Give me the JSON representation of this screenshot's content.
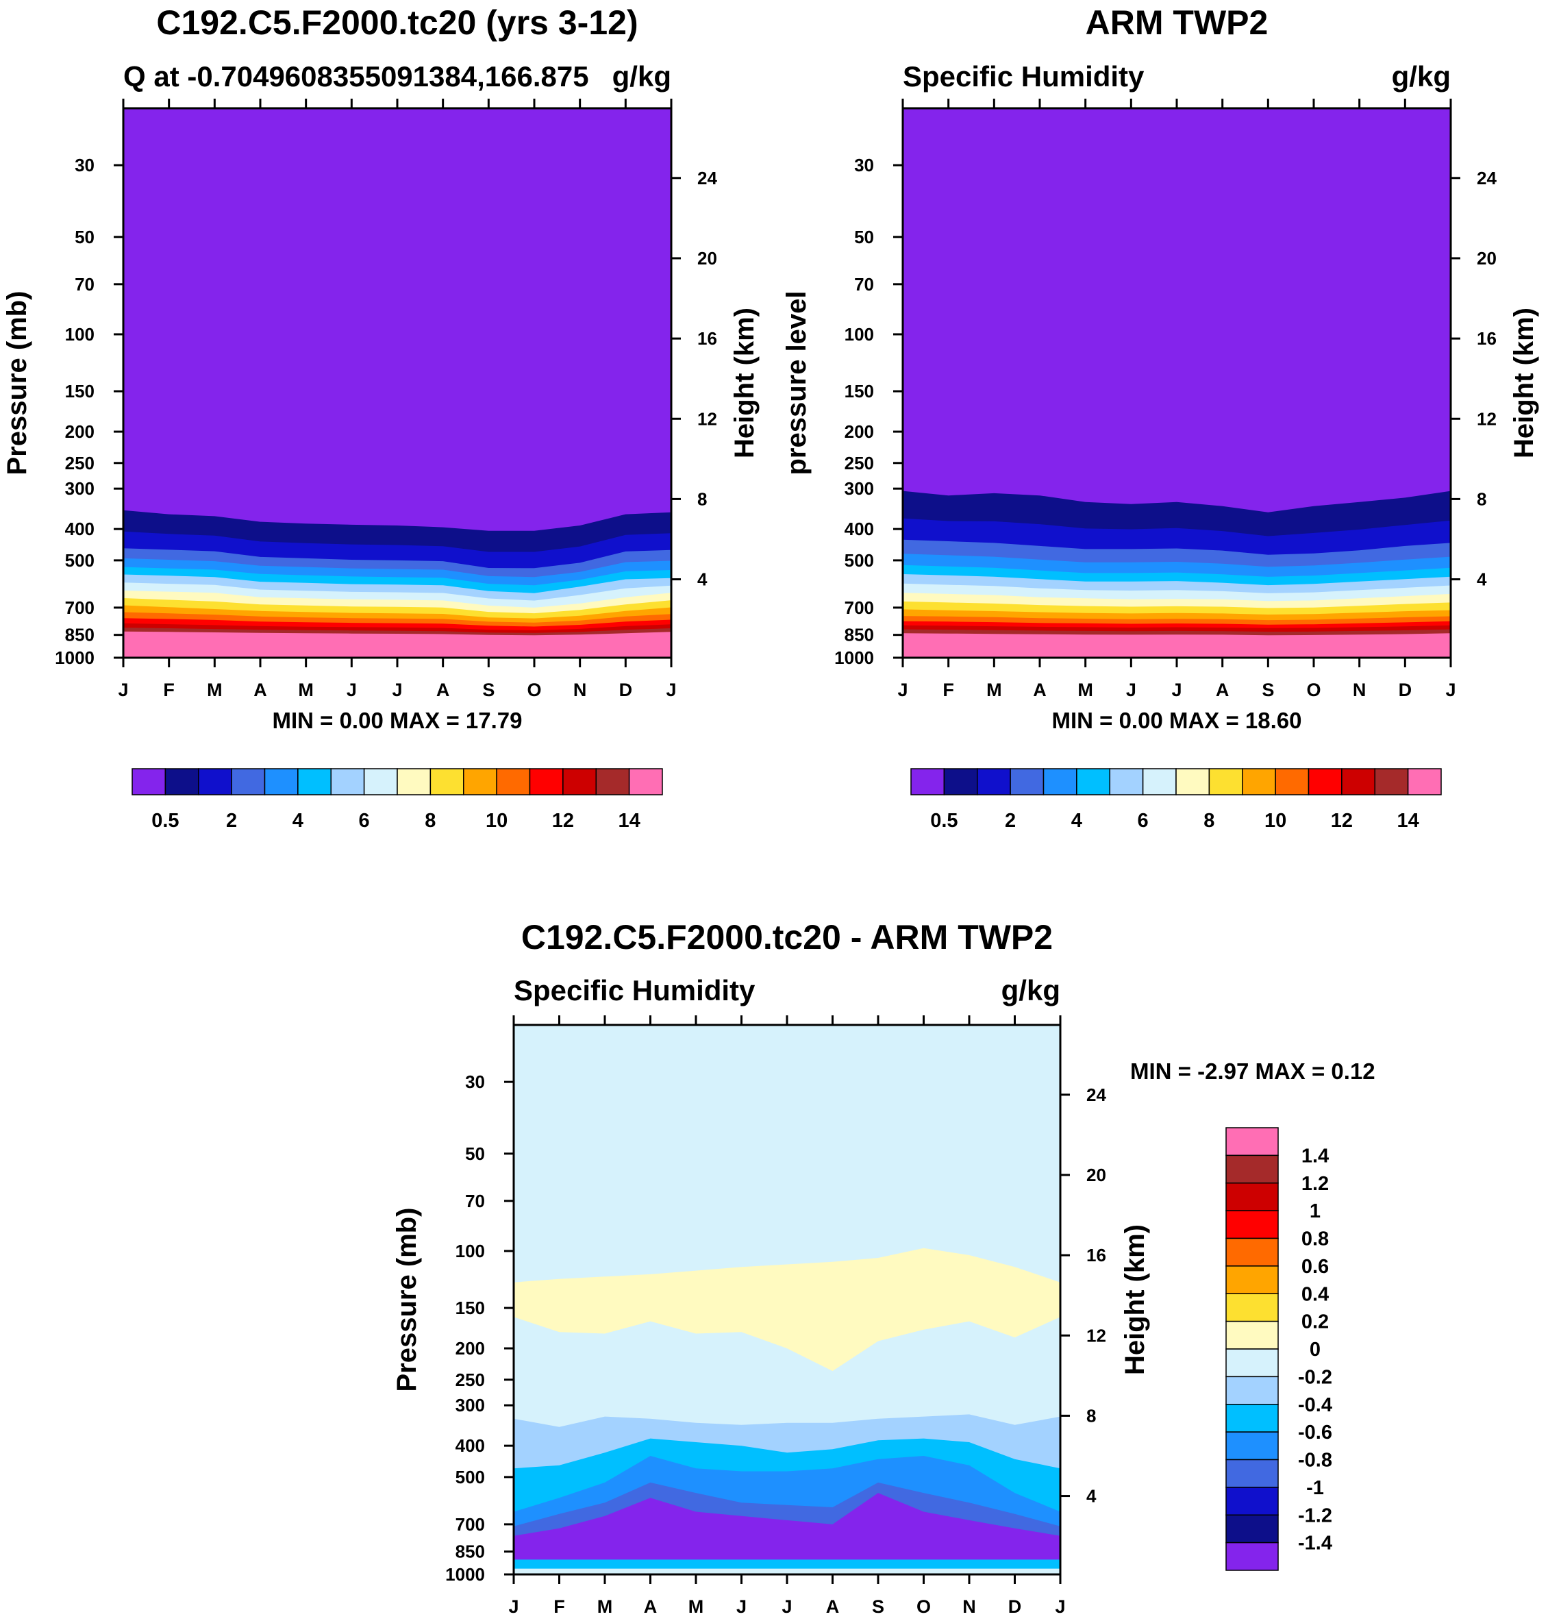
{
  "chart_data": [
    {
      "type": "contour",
      "title": "C192.C5.F2000.tc20 (yrs 3-12)",
      "left_label": "Q at -0.7049608355091384,166.875",
      "units": "g/kg",
      "ylabel": "Pressure (mb)",
      "y2label": "Height (km)",
      "xlabel": "",
      "stats": "MIN =   0.00 MAX =  17.79",
      "x_ticks": [
        "J",
        "F",
        "M",
        "A",
        "M",
        "J",
        "J",
        "A",
        "S",
        "O",
        "N",
        "D",
        "J"
      ],
      "y_ticks": [
        "30",
        "50",
        "70",
        "100",
        "150",
        "200",
        "250",
        "300",
        "400",
        "500",
        "700",
        "850",
        "1000"
      ],
      "y_tick_values": [
        30,
        50,
        70,
        100,
        150,
        200,
        250,
        300,
        400,
        500,
        700,
        850,
        1000
      ],
      "y2_ticks": [
        "24",
        "20",
        "16",
        "12",
        "8",
        "4"
      ],
      "y2_tick_values": [
        24,
        20,
        16,
        12,
        8,
        4
      ],
      "ylim": [
        20,
        1000
      ],
      "colorbar_labels": [
        "0.5",
        "2",
        "4",
        "6",
        "8",
        "10",
        "12",
        "14"
      ],
      "contour_levels": [
        0.5,
        1,
        2,
        3,
        4,
        5,
        6,
        7,
        8,
        9,
        10,
        11,
        12,
        13,
        14
      ],
      "level_pressure_top": [
        [
          350,
          360,
          365,
          380,
          385,
          388,
          390,
          395,
          405,
          405,
          390,
          360,
          355
        ],
        [
          450,
          455,
          460,
          480,
          485,
          490,
          492,
          495,
          520,
          520,
          500,
          460,
          455
        ],
        [
          510,
          515,
          520,
          535,
          540,
          545,
          548,
          550,
          575,
          580,
          560,
          525,
          520
        ],
        [
          560,
          565,
          570,
          590,
          595,
          600,
          602,
          605,
          630,
          640,
          610,
          580,
          575
        ],
        [
          620,
          625,
          630,
          650,
          655,
          660,
          662,
          665,
          690,
          700,
          680,
          650,
          630
        ],
        [
          680,
          690,
          700,
          710,
          715,
          720,
          722,
          725,
          745,
          750,
          735,
          710,
          690
        ],
        [
          740,
          745,
          750,
          760,
          765,
          768,
          770,
          772,
          785,
          790,
          780,
          760,
          750
        ],
        [
          790,
          795,
          800,
          805,
          808,
          810,
          812,
          815,
          825,
          828,
          820,
          805,
          795
        ],
        [
          830,
          832,
          835,
          838,
          840,
          842,
          843,
          845,
          850,
          852,
          848,
          840,
          832
        ]
      ],
      "colorbar_colors": [
        "#8424ec",
        "#0d0f8a",
        "#1010cc",
        "#4169e1",
        "#1e90ff",
        "#00bfff",
        "#a3d2ff",
        "#d6f2fc",
        "#fffac0",
        "#fde030",
        "#ffa500",
        "#ff6a00",
        "#ff0000",
        "#cd0000",
        "#a52a2a",
        "#ff6eb4"
      ]
    },
    {
      "type": "contour",
      "title": "ARM TWP2",
      "left_label": "Specific Humidity",
      "units": "g/kg",
      "ylabel": "pressure level",
      "y2label": "Height (km)",
      "xlabel": "",
      "stats": "MIN =   0.00 MAX =  18.60",
      "x_ticks": [
        "J",
        "F",
        "M",
        "A",
        "M",
        "J",
        "J",
        "A",
        "S",
        "O",
        "N",
        "D",
        "J"
      ],
      "y_ticks": [
        "30",
        "50",
        "70",
        "100",
        "150",
        "200",
        "250",
        "300",
        "400",
        "500",
        "700",
        "850",
        "1000"
      ],
      "y_tick_values": [
        30,
        50,
        70,
        100,
        150,
        200,
        250,
        300,
        400,
        500,
        700,
        850,
        1000
      ],
      "y2_ticks": [
        "24",
        "20",
        "16",
        "12",
        "8",
        "4"
      ],
      "y2_tick_values": [
        24,
        20,
        16,
        12,
        8,
        4
      ],
      "ylim": [
        20,
        1000
      ],
      "colorbar_labels": [
        "0.5",
        "2",
        "4",
        "6",
        "8",
        "10",
        "12",
        "14"
      ],
      "contour_levels": [
        0.5,
        1,
        2,
        3,
        4,
        5,
        6,
        7,
        8,
        9,
        10,
        11,
        12,
        13,
        14
      ],
      "level_pressure_top": [
        [
          305,
          315,
          310,
          315,
          330,
          335,
          330,
          340,
          355,
          340,
          330,
          320,
          305
        ],
        [
          420,
          425,
          430,
          440,
          450,
          450,
          448,
          455,
          470,
          465,
          455,
          440,
          430
        ],
        [
          500,
          505,
          510,
          520,
          530,
          530,
          528,
          535,
          545,
          540,
          530,
          520,
          510
        ],
        [
          560,
          565,
          570,
          580,
          590,
          590,
          588,
          595,
          605,
          600,
          590,
          580,
          570
        ],
        [
          630,
          635,
          640,
          650,
          655,
          660,
          658,
          660,
          668,
          665,
          655,
          645,
          635
        ],
        [
          700,
          705,
          710,
          715,
          720,
          722,
          720,
          722,
          728,
          725,
          718,
          710,
          705
        ],
        [
          760,
          762,
          765,
          770,
          772,
          775,
          773,
          775,
          780,
          778,
          772,
          766,
          760
        ],
        [
          800,
          802,
          805,
          808,
          810,
          812,
          810,
          812,
          815,
          814,
          810,
          806,
          800
        ],
        [
          840,
          842,
          844,
          846,
          848,
          849,
          848,
          849,
          852,
          851,
          848,
          845,
          840
        ]
      ],
      "colorbar_colors": [
        "#8424ec",
        "#0d0f8a",
        "#1010cc",
        "#4169e1",
        "#1e90ff",
        "#00bfff",
        "#a3d2ff",
        "#d6f2fc",
        "#fffac0",
        "#fde030",
        "#ffa500",
        "#ff6a00",
        "#ff0000",
        "#cd0000",
        "#a52a2a",
        "#ff6eb4"
      ]
    },
    {
      "type": "contour",
      "title": "C192.C5.F2000.tc20 - ARM TWP2",
      "left_label": "Specific Humidity",
      "units": "g/kg",
      "ylabel": "Pressure (mb)",
      "y2label": "Height (km)",
      "xlabel": "",
      "stats": "MIN =  -2.97 MAX =   0.12",
      "x_ticks": [
        "J",
        "F",
        "M",
        "A",
        "M",
        "J",
        "J",
        "A",
        "S",
        "O",
        "N",
        "D",
        "J"
      ],
      "y_ticks": [
        "30",
        "50",
        "70",
        "100",
        "150",
        "200",
        "250",
        "300",
        "400",
        "500",
        "700",
        "850",
        "1000"
      ],
      "y_tick_values": [
        30,
        50,
        70,
        100,
        150,
        200,
        250,
        300,
        400,
        500,
        700,
        850,
        1000
      ],
      "y2_ticks": [
        "24",
        "20",
        "16",
        "12",
        "8",
        "4"
      ],
      "y2_tick_values": [
        24,
        20,
        16,
        12,
        8,
        4
      ],
      "ylim": [
        20,
        1000
      ],
      "colorbar_labels": [
        "1.4",
        "1.2",
        "1",
        "0.8",
        "0.6",
        "0.4",
        "0.2",
        "0",
        "-0.2",
        "-0.4",
        "-0.6",
        "-0.8",
        "-1",
        "-1.2",
        "-1.4"
      ],
      "contour_levels": [
        -1.4,
        -1.2,
        -1,
        -0.8,
        -0.6,
        -0.4,
        -0.2,
        0,
        0.2,
        0.4,
        0.6,
        0.8,
        1,
        1.2,
        1.4
      ],
      "positive_band_pressure": {
        "top": [
          125,
          122,
          120,
          118,
          115,
          112,
          110,
          108,
          105,
          98,
          103,
          112,
          125
        ],
        "bottom": [
          160,
          178,
          180,
          165,
          180,
          178,
          200,
          235,
          190,
          175,
          165,
          185,
          160
        ]
      },
      "negative_band_pressure_top": [
        [
          330,
          350,
          325,
          330,
          340,
          345,
          340,
          340,
          330,
          325,
          320,
          345,
          325
        ],
        [
          470,
          460,
          420,
          380,
          390,
          400,
          420,
          410,
          385,
          380,
          390,
          440,
          470
        ],
        [
          640,
          580,
          520,
          430,
          470,
          480,
          480,
          470,
          440,
          430,
          460,
          560,
          640
        ],
        [
          710,
          650,
          600,
          520,
          560,
          600,
          610,
          620,
          520,
          560,
          600,
          650,
          710
        ],
        [
          760,
          720,
          660,
          580,
          640,
          660,
          680,
          700,
          560,
          640,
          680,
          720,
          760
        ]
      ],
      "colorbar_colors": [
        "#ff6eb4",
        "#a52a2a",
        "#cd0000",
        "#ff0000",
        "#ff6a00",
        "#ffa500",
        "#fde030",
        "#fffac0",
        "#d6f2fc",
        "#a3d2ff",
        "#00bfff",
        "#1e90ff",
        "#4169e1",
        "#1010cc",
        "#0d0f8a",
        "#8424ec"
      ]
    }
  ]
}
